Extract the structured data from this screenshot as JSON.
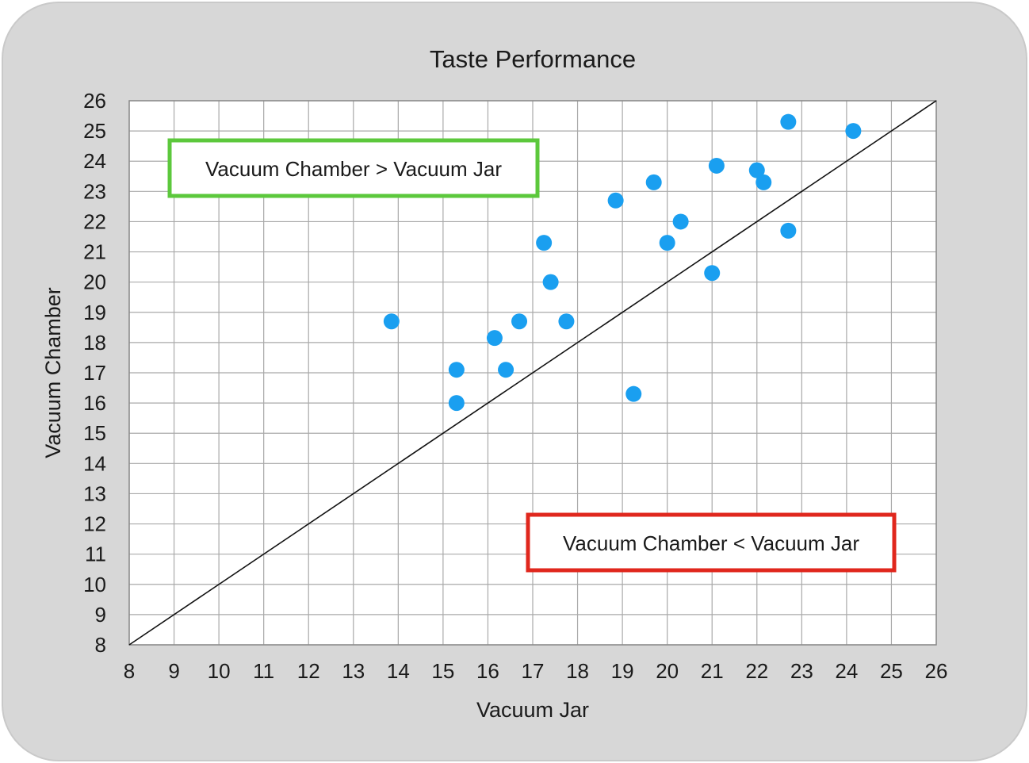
{
  "chart_data": {
    "type": "scatter",
    "title": "Taste Performance",
    "xlabel": "Vacuum Jar",
    "ylabel": "Vacuum Chamber",
    "xlim": [
      8,
      26
    ],
    "ylim": [
      8,
      26
    ],
    "x_ticks": [
      "8",
      "9",
      "10",
      "11",
      "12",
      "13",
      "14",
      "15",
      "16",
      "17",
      "18",
      "19",
      "20",
      "21",
      "22",
      "23",
      "24",
      "25",
      "26"
    ],
    "y_ticks": [
      "8",
      "9",
      "10",
      "11",
      "12",
      "13",
      "14",
      "15",
      "16",
      "17",
      "18",
      "19",
      "20",
      "21",
      "22",
      "23",
      "24",
      "25",
      "26"
    ],
    "grid": true,
    "reference_line": {
      "from": [
        8,
        8
      ],
      "to": [
        26,
        26
      ]
    },
    "series": [
      {
        "marker_color": "#1a9ff0",
        "points": [
          [
            13.85,
            18.7
          ],
          [
            15.3,
            17.1
          ],
          [
            15.3,
            16.0
          ],
          [
            16.15,
            18.15
          ],
          [
            16.4,
            17.1
          ],
          [
            16.7,
            18.7
          ],
          [
            17.25,
            21.3
          ],
          [
            17.4,
            20.0
          ],
          [
            17.75,
            18.7
          ],
          [
            18.85,
            22.7
          ],
          [
            19.25,
            16.3
          ],
          [
            19.7,
            23.3
          ],
          [
            20.0,
            21.3
          ],
          [
            20.3,
            22.0
          ],
          [
            21.0,
            20.3
          ],
          [
            21.1,
            23.85
          ],
          [
            22.0,
            23.7
          ],
          [
            22.15,
            23.3
          ],
          [
            22.7,
            25.3
          ],
          [
            22.7,
            21.7
          ],
          [
            24.15,
            25.0
          ]
        ]
      }
    ],
    "annotations": [
      {
        "text": "Vacuum Chamber > Vacuum Jar",
        "border_color": "#5cc83c"
      },
      {
        "text": "Vacuum Chamber < Vacuum Jar",
        "border_color": "#e0271d"
      }
    ]
  }
}
